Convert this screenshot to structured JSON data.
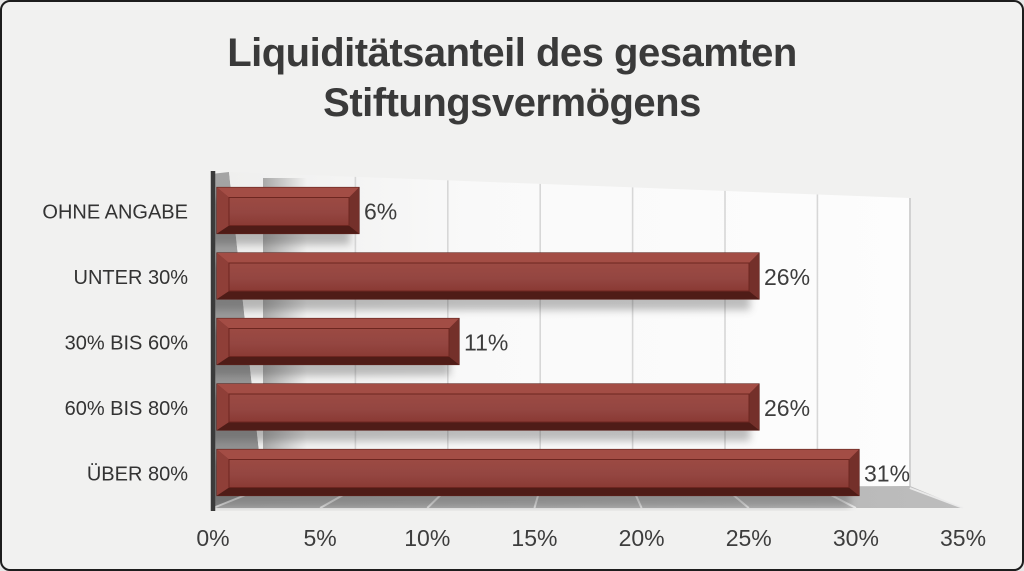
{
  "page": {
    "background": "#f1f1f0",
    "border_color": "#1d1d1d"
  },
  "title": {
    "line1": "Liquiditätsanteil des gesamten",
    "line2": "Stiftungsvermögens",
    "color": "#3a3a3a"
  },
  "chart_data": {
    "type": "bar",
    "orientation": "horizontal",
    "style": "3d-beveled",
    "title": "Liquiditätsanteil des gesamten Stiftungsvermögens",
    "categories": [
      "OHNE ANGABE",
      "UNTER 30%",
      "30% BIS 60%",
      "60% BIS 80%",
      "ÜBER 80%"
    ],
    "values": [
      6,
      26,
      11,
      26,
      31
    ],
    "value_labels": [
      "6%",
      "26%",
      "11%",
      "26%",
      "31%"
    ],
    "x_ticks": [
      "0%",
      "5%",
      "10%",
      "15%",
      "20%",
      "25%",
      "30%",
      "35%"
    ],
    "xlim": [
      0,
      35
    ],
    "xlabel": "",
    "ylabel": "",
    "grid": true,
    "legend": false,
    "colors": {
      "bar_face": "#954641",
      "bar_face_dark": "#8a3a34",
      "bar_top_bevel": "#a04a42",
      "bar_bottom_bevel": "#5e2era",
      "bar_outline": "#5c211b",
      "wall": "#9b9b9b",
      "floor": "#b3b3b3",
      "plot_bg": "#fbfbfb",
      "gridline": "#d7d7d7",
      "axis_line": "#3a3a3a",
      "label_text": "#3d3d3d",
      "category_text": "#333333"
    }
  }
}
